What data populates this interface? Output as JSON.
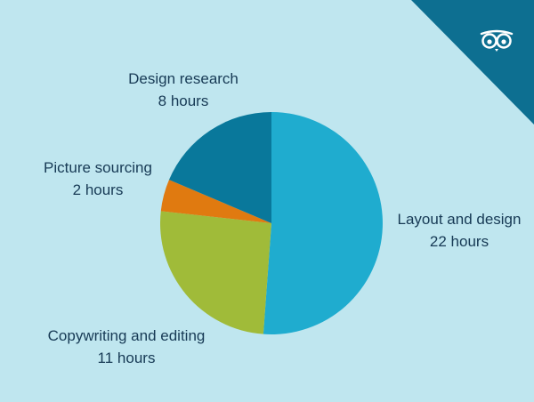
{
  "chart_data": {
    "type": "pie",
    "title": "",
    "slices": [
      {
        "label": "Layout and design",
        "value": 22,
        "value_text": "22 hours",
        "color": "#1faccf"
      },
      {
        "label": "Copywriting and editing",
        "value": 11,
        "value_text": "11 hours",
        "color": "#a0bb39"
      },
      {
        "label": "Picture sourcing",
        "value": 2,
        "value_text": "2 hours",
        "color": "#e07a10"
      },
      {
        "label": "Design research",
        "value": 8,
        "value_text": "8 hours",
        "color": "#09789b"
      }
    ],
    "start_angle": "12 o'clock",
    "direction": "clockwise"
  },
  "brand": {
    "corner_color": "#0d6f91",
    "background": "#bfe6ef",
    "logo_icon": "owl-glasses-icon"
  }
}
